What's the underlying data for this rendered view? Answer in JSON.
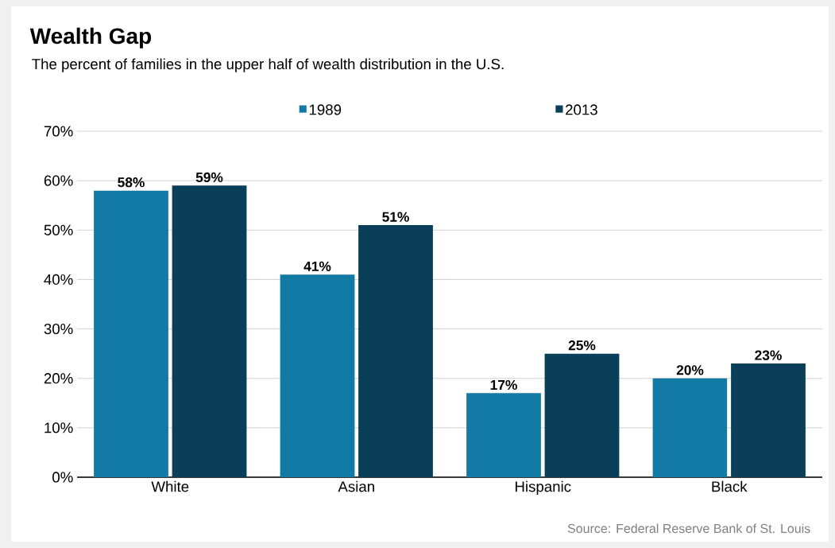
{
  "chart_data": {
    "type": "bar",
    "title": "Wealth Gap",
    "subtitle": "The percent of families in the upper half of wealth distribution in the U.S.",
    "categories": [
      "White",
      "Asian",
      "Hispanic",
      "Black"
    ],
    "series": [
      {
        "name": "1989",
        "color": "#137aa6",
        "values": [
          58,
          41,
          17,
          20
        ],
        "value_labels": [
          "58%",
          "41%",
          "17%",
          "20%"
        ]
      },
      {
        "name": "2013",
        "color": "#0b3e58",
        "values": [
          59,
          51,
          25,
          23
        ],
        "value_labels": [
          "59%",
          "51%",
          "25%",
          "23%"
        ]
      }
    ],
    "ylim": [
      0,
      70
    ],
    "yticks": [
      {
        "value": 0,
        "label": "0%"
      },
      {
        "value": 10,
        "label": "10%"
      },
      {
        "value": 20,
        "label": "20%"
      },
      {
        "value": 30,
        "label": "30%"
      },
      {
        "value": 40,
        "label": "40%"
      },
      {
        "value": 50,
        "label": "50%"
      },
      {
        "value": 60,
        "label": "60%"
      },
      {
        "value": 70,
        "label": "70%"
      }
    ],
    "grid": "y",
    "legend": "top",
    "annotations": [
      "Source: Federal Reserve Bank of St. Louis"
    ]
  }
}
